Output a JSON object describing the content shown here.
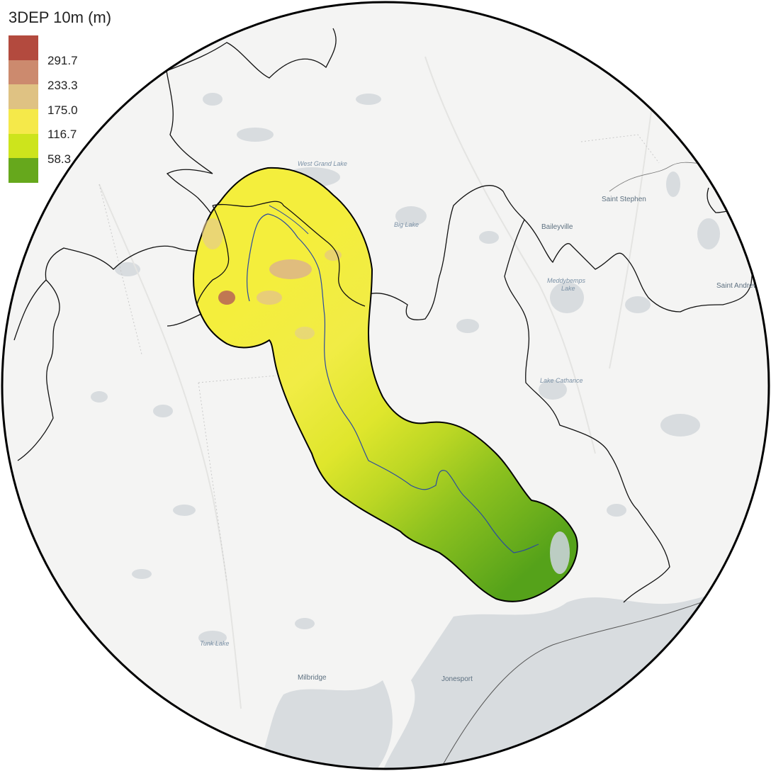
{
  "legend": {
    "title": "3DEP 10m (m)",
    "colors": [
      "#b34a3e",
      "#cc8a6e",
      "#dfc283",
      "#f5e94a",
      "#cde41c",
      "#66a81c"
    ],
    "labels": [
      "291.7",
      "233.3",
      "175.0",
      "116.7",
      "58.3"
    ]
  },
  "places": {
    "west_grand_lake": "West Grand Lake",
    "big_lake": "Big Lake",
    "saint_stephen": "Saint Stephen",
    "baileyville": "Baileyville",
    "meddybemps_lake_1": "Meddybemps",
    "meddybemps_lake_2": "Lake",
    "saint_andrews": "Saint Andrews",
    "lake_cathance": "Lake Cathance",
    "tunk_lake": "Tunk Lake",
    "milbridge": "Milbridge",
    "jonesport": "Jonesport"
  }
}
